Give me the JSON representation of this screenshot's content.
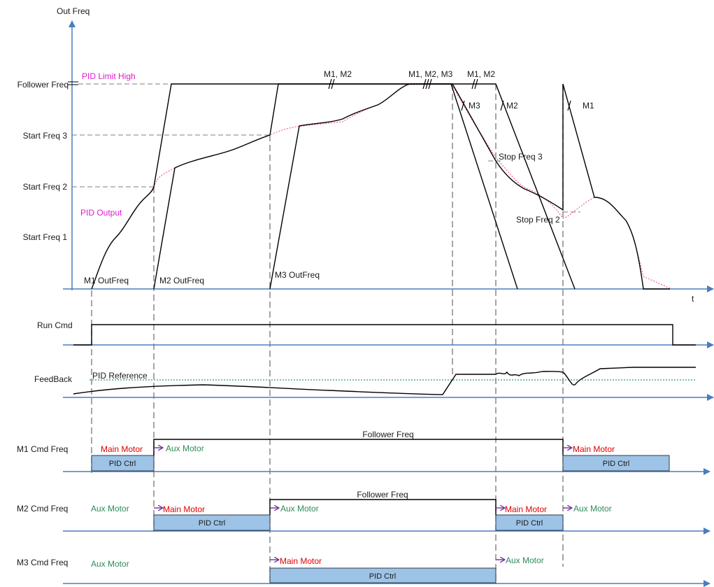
{
  "axis": {
    "y_title": "Out Freq",
    "x_title": "t",
    "follower_freq": "Follower Freq",
    "start_freq_3": "Start Freq 3",
    "start_freq_2": "Start Freq 2",
    "start_freq_1": "Start Freq 1"
  },
  "annotations": {
    "pid_limit_high": "PID Limit High",
    "pid_output": "PID Output",
    "m1_outfreq": "M1 OutFreq",
    "m2_outfreq": "M2 OutFreq",
    "m3_outfreq": "M3 OutFreq",
    "m1m2_a": "M1, M2",
    "m1m2m3": "M1, M2, M3",
    "m1m2_b": "M1, M2",
    "m3": "M3",
    "m2": "M2",
    "m1": "M1",
    "stop_freq_3": "Stop Freq 3",
    "stop_freq_2": "Stop Freq 2"
  },
  "signals": {
    "run_cmd": "Run Cmd",
    "feedback": "FeedBack",
    "pid_reference": "PID Reference",
    "m1_cmd": "M1 Cmd Freq",
    "m2_cmd": "M2 Cmd Freq",
    "m3_cmd": "M3 Cmd Freq"
  },
  "lanes": {
    "main_motor": "Main Motor",
    "aux_motor": "Aux Motor",
    "pid_ctrl": "PID Ctrl",
    "follower_freq": "Follower Freq"
  },
  "colors": {
    "axis": "#4a7ebb",
    "pid_label": "#e21bd0",
    "main_motor": "#e00000",
    "aux_motor": "#2e8b57",
    "pid_box": "#9dc3e6",
    "arrow": "#7030a0"
  }
}
